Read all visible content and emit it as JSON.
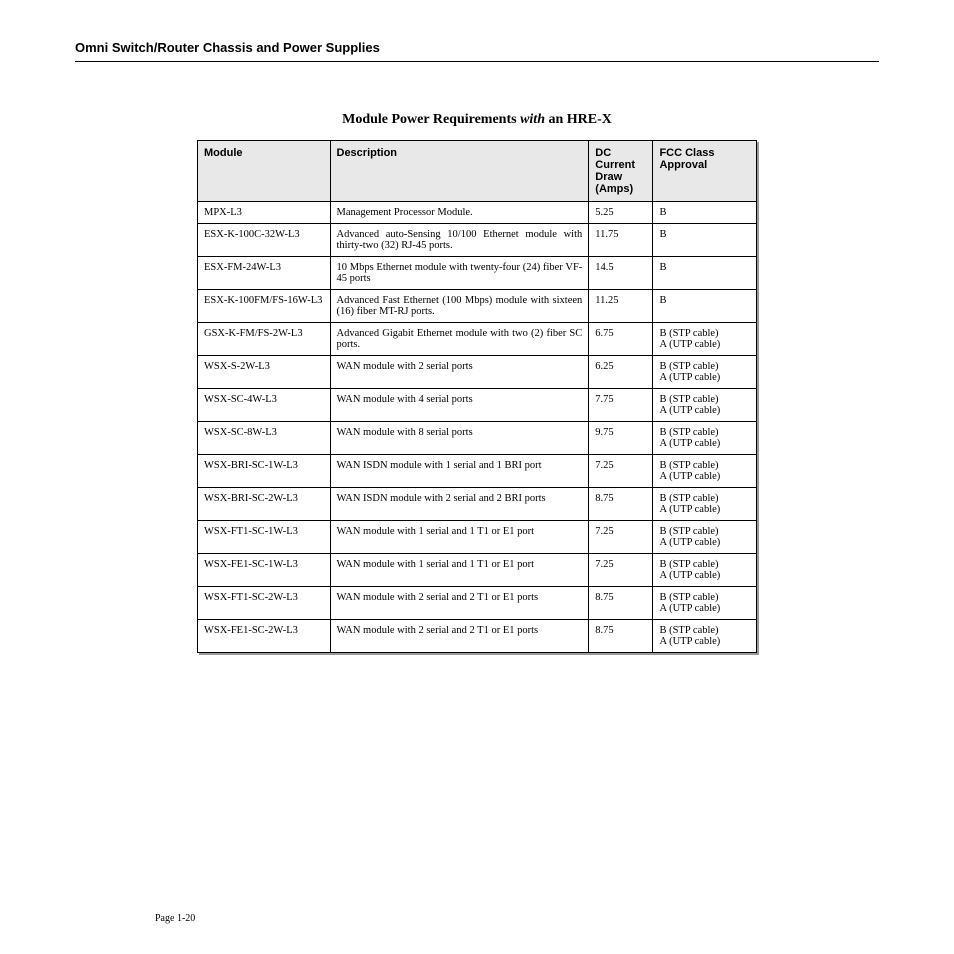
{
  "header": {
    "title": "Omni Switch/Router Chassis and Power Supplies"
  },
  "tableTitle": {
    "prefix": "Module Power Requirements ",
    "italic": "with",
    "suffix": " an HRE-X"
  },
  "columns": {
    "module": "Module",
    "description": "Description",
    "dc": "DC Current Draw (Amps)",
    "fcc": "FCC Class Approval"
  },
  "rows": [
    {
      "module": "MPX-L3",
      "description": "Management Processor Module.",
      "dc": "5.25",
      "fcc": "B"
    },
    {
      "module": "ESX-K-100C-32W-L3",
      "description": "Advanced auto-Sensing 10/100 Ethernet module with thirty-two (32) RJ-45 ports.",
      "dc": "11.75",
      "fcc": "B"
    },
    {
      "module": "ESX-FM-24W-L3",
      "description": "10 Mbps Ethernet module with twenty-four (24) fiber VF-45 ports",
      "dc": "14.5",
      "fcc": "B"
    },
    {
      "module": "ESX-K-100FM/FS-16W-L3",
      "description": "Advanced Fast Ethernet (100 Mbps) module with sixteen (16) fiber MT-RJ ports.",
      "dc": "11.25",
      "fcc": "B"
    },
    {
      "module": "GSX-K-FM/FS-2W-L3",
      "description": "Advanced Gigabit Ethernet module with two (2) fiber SC ports.",
      "dc": "6.75",
      "fcc": "B (STP cable)\nA (UTP cable)"
    },
    {
      "module": "WSX-S-2W-L3",
      "description": "WAN module with 2 serial ports",
      "dc": "6.25",
      "fcc": "B (STP cable)\nA (UTP cable)"
    },
    {
      "module": "WSX-SC-4W-L3",
      "description": "WAN module with 4 serial ports",
      "dc": "7.75",
      "fcc": "B (STP cable)\nA (UTP cable)"
    },
    {
      "module": "WSX-SC-8W-L3",
      "description": "WAN module with 8 serial ports",
      "dc": "9.75",
      "fcc": "B (STP cable)\nA (UTP cable)"
    },
    {
      "module": "WSX-BRI-SC-1W-L3",
      "description": "WAN ISDN module with 1 serial and 1 BRI port",
      "dc": "7.25",
      "fcc": "B (STP cable)\nA (UTP cable)"
    },
    {
      "module": "WSX-BRI-SC-2W-L3",
      "description": "WAN ISDN module with 2 serial and 2 BRI ports",
      "dc": "8.75",
      "fcc": "B (STP cable)\nA (UTP cable)"
    },
    {
      "module": "WSX-FT1-SC-1W-L3",
      "description": "WAN module with 1 serial and 1 T1 or E1 port",
      "dc": "7.25",
      "fcc": "B (STP cable)\nA (UTP cable)"
    },
    {
      "module": "WSX-FE1-SC-1W-L3",
      "description": "WAN module with 1 serial and 1 T1 or E1 port",
      "dc": "7.25",
      "fcc": "B (STP cable)\nA (UTP cable)"
    },
    {
      "module": "WSX-FT1-SC-2W-L3",
      "description": "WAN module with 2 serial and 2 T1 or E1 ports",
      "dc": "8.75",
      "fcc": "B (STP cable)\nA (UTP cable)"
    },
    {
      "module": "WSX-FE1-SC-2W-L3",
      "description": "WAN module with 2 serial and 2 T1 or E1 ports",
      "dc": "8.75",
      "fcc": "B (STP cable)\nA (UTP cable)"
    }
  ],
  "footer": {
    "pageNumber": "Page 1-20"
  }
}
